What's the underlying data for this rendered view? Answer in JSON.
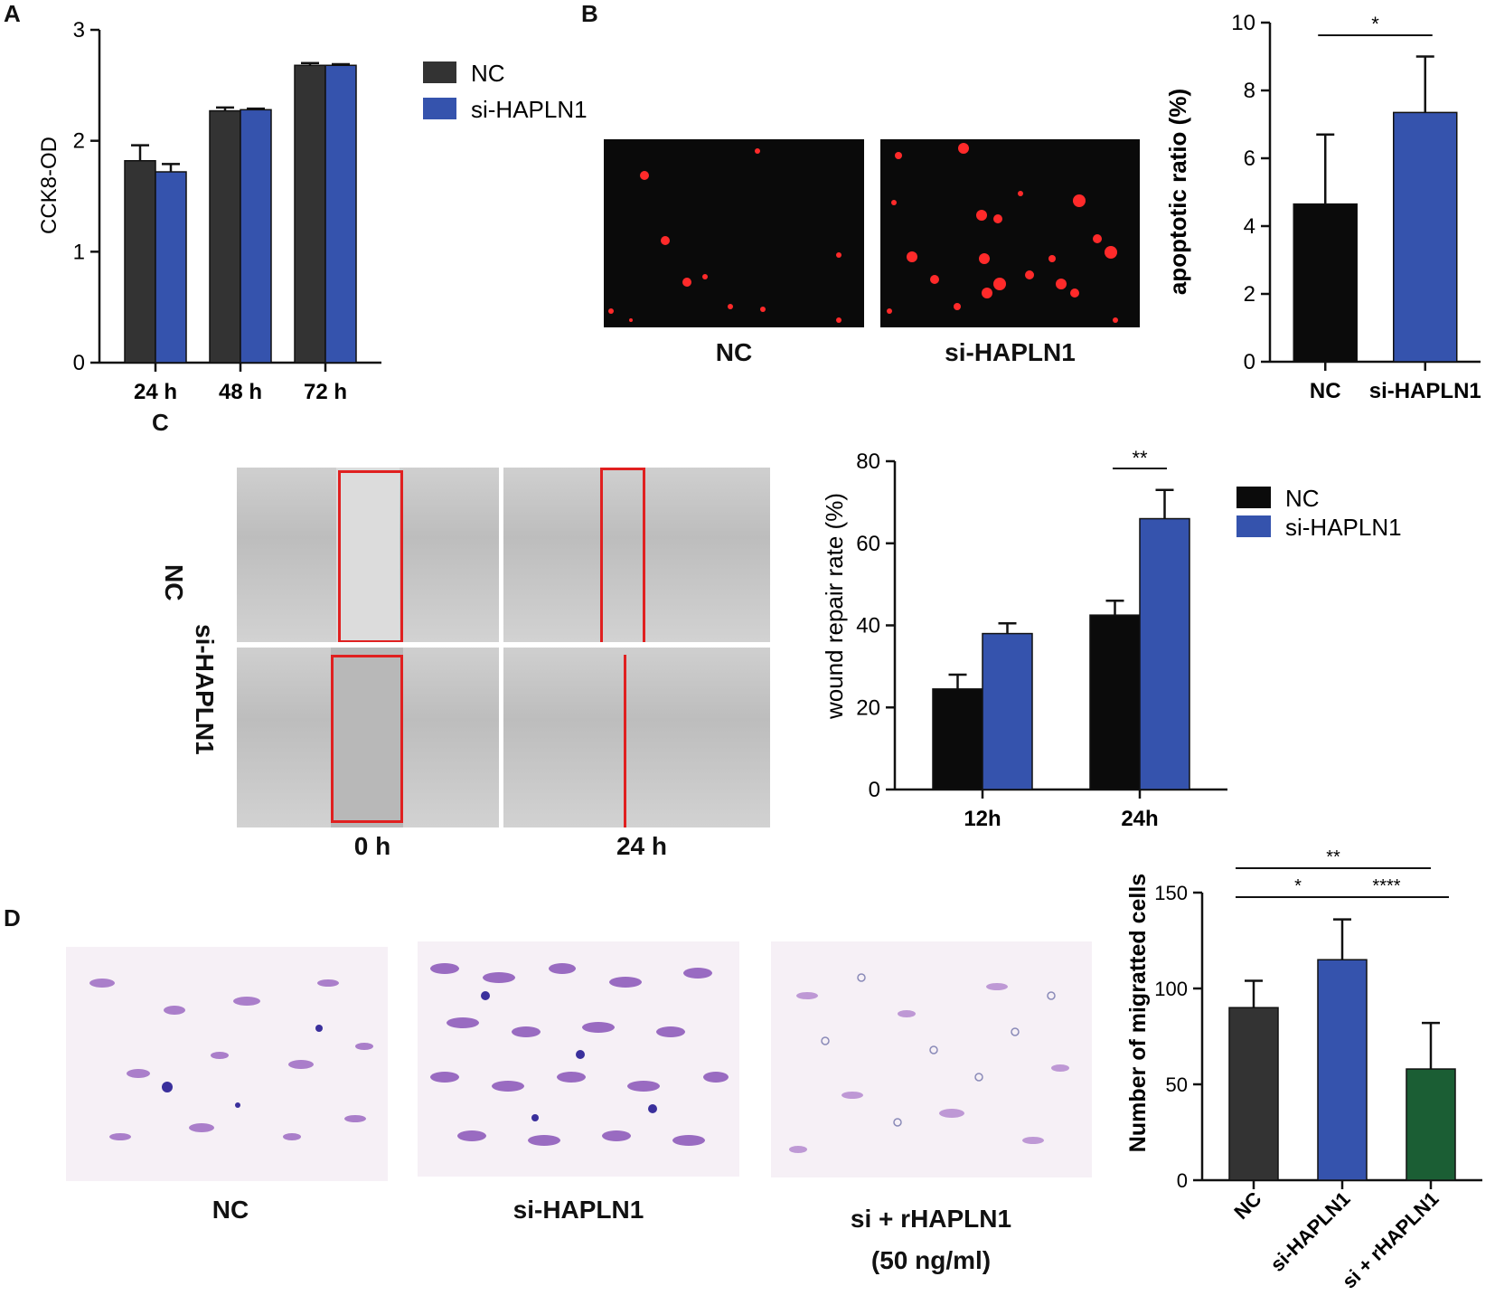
{
  "panels": {
    "A": "A",
    "B": "B",
    "C": "C",
    "D": "D"
  },
  "colors": {
    "nc_dark": "#333333",
    "nc_black": "#0b0b0b",
    "si_blue": "#3553ad",
    "rescue_green": "#1b5e34",
    "box_red": "#e02020"
  },
  "B_images": {
    "labels": [
      "NC",
      "si-HAPLN1"
    ]
  },
  "C_images": {
    "row_labels": [
      "NC",
      "si-HAPLN1"
    ],
    "col_labels": [
      "0 h",
      "24 h"
    ]
  },
  "D_images": {
    "labels": [
      "NC",
      "si-HAPLN1",
      "si + rHAPLN1",
      "(50 ng/ml)"
    ]
  },
  "chart_data": [
    {
      "id": "A",
      "type": "bar",
      "categories": [
        "24 h",
        "48 h",
        "72 h"
      ],
      "series": [
        {
          "name": "NC",
          "values": [
            1.82,
            2.27,
            2.68
          ],
          "errors": [
            0.14,
            0.03,
            0.02
          ],
          "color": "#333333"
        },
        {
          "name": "si-HAPLN1",
          "values": [
            1.72,
            2.28,
            2.68
          ],
          "errors": [
            0.07,
            0.01,
            0.01
          ],
          "color": "#3553ad"
        }
      ],
      "ylabel": "CCK8-OD",
      "ylim": [
        0,
        3
      ],
      "yticks": [
        0,
        1,
        2,
        3
      ],
      "legend": "right"
    },
    {
      "id": "B",
      "type": "bar",
      "categories": [
        "NC",
        "si-HAPLN1"
      ],
      "values": [
        4.65,
        7.35
      ],
      "errors": [
        2.05,
        1.65
      ],
      "colors": [
        "#0b0b0b",
        "#3553ad"
      ],
      "ylabel": "apoptotic ratio (%)",
      "ylim": [
        0,
        10
      ],
      "yticks": [
        0,
        2,
        4,
        6,
        8,
        10
      ],
      "significance": [
        {
          "from": 0,
          "to": 1,
          "label": "*"
        }
      ]
    },
    {
      "id": "C",
      "type": "bar",
      "categories": [
        "12h",
        "24h"
      ],
      "series": [
        {
          "name": "NC",
          "values": [
            24.5,
            42.5
          ],
          "errors": [
            3.5,
            3.5
          ],
          "color": "#0b0b0b"
        },
        {
          "name": "si-HAPLN1",
          "values": [
            38,
            66
          ],
          "errors": [
            2.5,
            7
          ],
          "color": "#3553ad"
        }
      ],
      "ylabel": "wound repair rate (%)",
      "ylim": [
        0,
        80
      ],
      "yticks": [
        0,
        20,
        40,
        60,
        80
      ],
      "legend": "right",
      "significance": [
        {
          "category": 1,
          "label": "**"
        }
      ]
    },
    {
      "id": "D",
      "type": "bar",
      "categories": [
        "NC",
        "si-HAPLN1",
        "si + rHAPLN1"
      ],
      "values": [
        90,
        115,
        58
      ],
      "errors": [
        14,
        21,
        24
      ],
      "colors": [
        "#333333",
        "#3553ad",
        "#1b5e34"
      ],
      "ylabel": "Number of migratted cells",
      "ylim": [
        0,
        150
      ],
      "yticks": [
        0,
        50,
        100,
        150
      ],
      "significance": [
        {
          "from": 0,
          "to": 2,
          "label": "**"
        },
        {
          "from": 0,
          "to": 1,
          "label": "*"
        },
        {
          "from": 1,
          "to": 2,
          "label": "****"
        }
      ]
    }
  ]
}
